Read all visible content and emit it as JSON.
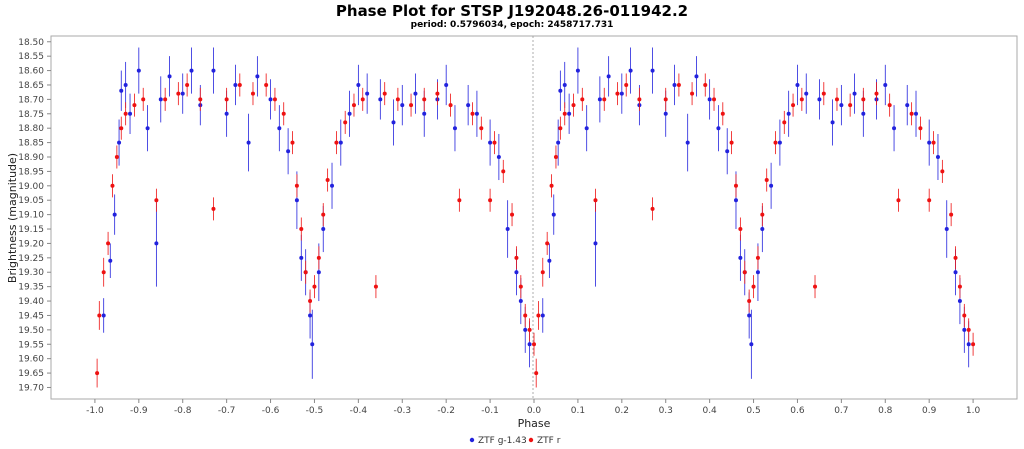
{
  "chart_data": {
    "type": "scatter",
    "title": "Phase Plot for STSP J192048.26-011942.2",
    "subtitle": "period: 0.5796034, epoch: 2458717.731",
    "xlabel": "Phase",
    "ylabel": "Brightness (magnitude)",
    "xlim": [
      -1.1,
      1.1
    ],
    "ylim": [
      18.48,
      19.74
    ],
    "y_inverted": true,
    "grid": false,
    "legend_placement": "bottom-center",
    "x_ticks": [
      "-1.0",
      "-0.9",
      "-0.8",
      "-0.7",
      "-0.6",
      "-0.5",
      "-0.4",
      "-0.3",
      "-0.2",
      "-0.1",
      "0.0",
      "0.1",
      "0.2",
      "0.3",
      "0.4",
      "0.5",
      "0.6",
      "0.7",
      "0.8",
      "0.9",
      "1.0"
    ],
    "y_ticks": [
      "18.50",
      "18.55",
      "18.60",
      "18.65",
      "18.70",
      "18.75",
      "18.80",
      "18.85",
      "18.90",
      "18.95",
      "19.00",
      "19.05",
      "19.10",
      "19.15",
      "19.20",
      "19.25",
      "19.30",
      "19.35",
      "19.40",
      "19.45",
      "19.50",
      "19.55",
      "19.60",
      "19.65",
      "19.70"
    ],
    "series": [
      {
        "name": "ZTF g-1.43",
        "color": "#2222dd",
        "points": [
          [
            -0.98,
            19.45,
            0.06
          ],
          [
            -0.965,
            19.26,
            0.06
          ],
          [
            -0.955,
            19.1,
            0.07
          ],
          [
            -0.945,
            18.85,
            0.08
          ],
          [
            -0.94,
            18.67,
            0.07
          ],
          [
            -0.93,
            18.65,
            0.08
          ],
          [
            -0.92,
            18.75,
            0.07
          ],
          [
            -0.9,
            18.6,
            0.08
          ],
          [
            -0.88,
            18.8,
            0.08
          ],
          [
            -0.86,
            19.2,
            0.15
          ],
          [
            -0.85,
            18.7,
            0.08
          ],
          [
            -0.83,
            18.62,
            0.07
          ],
          [
            -0.8,
            18.68,
            0.07
          ],
          [
            -0.78,
            18.6,
            0.08
          ],
          [
            -0.76,
            18.72,
            0.07
          ],
          [
            -0.73,
            18.6,
            0.08
          ],
          [
            -0.7,
            18.75,
            0.08
          ],
          [
            -0.68,
            18.65,
            0.07
          ],
          [
            -0.65,
            18.85,
            0.1
          ],
          [
            -0.63,
            18.62,
            0.07
          ],
          [
            -0.6,
            18.7,
            0.07
          ],
          [
            -0.58,
            18.8,
            0.08
          ],
          [
            -0.56,
            18.88,
            0.08
          ],
          [
            -0.54,
            19.05,
            0.1
          ],
          [
            -0.53,
            19.25,
            0.08
          ],
          [
            -0.52,
            19.3,
            0.08
          ],
          [
            -0.51,
            19.45,
            0.08
          ],
          [
            -0.505,
            19.55,
            0.12
          ],
          [
            -0.49,
            19.3,
            0.1
          ],
          [
            -0.48,
            19.15,
            0.08
          ],
          [
            -0.46,
            19.0,
            0.08
          ],
          [
            -0.44,
            18.85,
            0.08
          ],
          [
            -0.42,
            18.75,
            0.08
          ],
          [
            -0.4,
            18.65,
            0.07
          ],
          [
            -0.38,
            18.68,
            0.07
          ],
          [
            -0.35,
            18.7,
            0.07
          ],
          [
            -0.32,
            18.78,
            0.08
          ],
          [
            -0.3,
            18.72,
            0.07
          ],
          [
            -0.27,
            18.68,
            0.07
          ],
          [
            -0.25,
            18.75,
            0.08
          ],
          [
            -0.22,
            18.7,
            0.07
          ],
          [
            -0.2,
            18.65,
            0.07
          ],
          [
            -0.18,
            18.8,
            0.08
          ],
          [
            -0.15,
            18.72,
            0.07
          ],
          [
            -0.13,
            18.75,
            0.08
          ],
          [
            -0.1,
            18.85,
            0.08
          ],
          [
            -0.08,
            18.9,
            0.08
          ],
          [
            -0.06,
            19.15,
            0.1
          ],
          [
            -0.04,
            19.3,
            0.08
          ],
          [
            -0.03,
            19.4,
            0.08
          ],
          [
            -0.02,
            19.5,
            0.08
          ],
          [
            -0.01,
            19.55,
            0.08
          ],
          [
            0.02,
            19.45,
            0.06
          ],
          [
            0.035,
            19.26,
            0.06
          ],
          [
            0.045,
            19.1,
            0.07
          ],
          [
            0.055,
            18.85,
            0.08
          ],
          [
            0.06,
            18.67,
            0.07
          ],
          [
            0.07,
            18.65,
            0.08
          ],
          [
            0.08,
            18.75,
            0.07
          ],
          [
            0.1,
            18.6,
            0.08
          ],
          [
            0.12,
            18.8,
            0.08
          ],
          [
            0.14,
            19.2,
            0.15
          ],
          [
            0.15,
            18.7,
            0.08
          ],
          [
            0.17,
            18.62,
            0.07
          ],
          [
            0.2,
            18.68,
            0.07
          ],
          [
            0.22,
            18.6,
            0.08
          ],
          [
            0.24,
            18.72,
            0.07
          ],
          [
            0.27,
            18.6,
            0.08
          ],
          [
            0.3,
            18.75,
            0.08
          ],
          [
            0.32,
            18.65,
            0.07
          ],
          [
            0.35,
            18.85,
            0.1
          ],
          [
            0.37,
            18.62,
            0.07
          ],
          [
            0.4,
            18.7,
            0.07
          ],
          [
            0.42,
            18.8,
            0.08
          ],
          [
            0.44,
            18.88,
            0.08
          ],
          [
            0.46,
            19.05,
            0.1
          ],
          [
            0.47,
            19.25,
            0.08
          ],
          [
            0.48,
            19.3,
            0.08
          ],
          [
            0.49,
            19.45,
            0.08
          ],
          [
            0.495,
            19.55,
            0.12
          ],
          [
            0.51,
            19.3,
            0.1
          ],
          [
            0.52,
            19.15,
            0.08
          ],
          [
            0.54,
            19.0,
            0.08
          ],
          [
            0.56,
            18.85,
            0.08
          ],
          [
            0.58,
            18.75,
            0.08
          ],
          [
            0.6,
            18.65,
            0.07
          ],
          [
            0.62,
            18.68,
            0.07
          ],
          [
            0.65,
            18.7,
            0.07
          ],
          [
            0.68,
            18.78,
            0.08
          ],
          [
            0.7,
            18.72,
            0.07
          ],
          [
            0.73,
            18.68,
            0.07
          ],
          [
            0.75,
            18.75,
            0.08
          ],
          [
            0.78,
            18.7,
            0.07
          ],
          [
            0.8,
            18.65,
            0.07
          ],
          [
            0.82,
            18.8,
            0.08
          ],
          [
            0.85,
            18.72,
            0.07
          ],
          [
            0.87,
            18.75,
            0.08
          ],
          [
            0.9,
            18.85,
            0.08
          ],
          [
            0.92,
            18.9,
            0.08
          ],
          [
            0.94,
            19.15,
            0.1
          ],
          [
            0.96,
            19.3,
            0.08
          ],
          [
            0.97,
            19.4,
            0.08
          ],
          [
            0.98,
            19.5,
            0.08
          ],
          [
            0.99,
            19.55,
            0.08
          ]
        ]
      },
      {
        "name": "ZTF r",
        "color": "#ee1111",
        "points": [
          [
            -0.995,
            19.65,
            0.05
          ],
          [
            -0.99,
            19.45,
            0.05
          ],
          [
            -0.98,
            19.3,
            0.05
          ],
          [
            -0.97,
            19.2,
            0.04
          ],
          [
            -0.96,
            19.0,
            0.04
          ],
          [
            -0.95,
            18.9,
            0.04
          ],
          [
            -0.94,
            18.8,
            0.04
          ],
          [
            -0.93,
            18.75,
            0.04
          ],
          [
            -0.91,
            18.72,
            0.04
          ],
          [
            -0.89,
            18.7,
            0.04
          ],
          [
            -0.86,
            19.05,
            0.04
          ],
          [
            -0.84,
            18.7,
            0.04
          ],
          [
            -0.81,
            18.68,
            0.04
          ],
          [
            -0.79,
            18.65,
            0.04
          ],
          [
            -0.76,
            18.7,
            0.04
          ],
          [
            -0.73,
            19.08,
            0.04
          ],
          [
            -0.7,
            18.7,
            0.04
          ],
          [
            -0.67,
            18.65,
            0.04
          ],
          [
            -0.64,
            18.68,
            0.04
          ],
          [
            -0.61,
            18.65,
            0.04
          ],
          [
            -0.59,
            18.7,
            0.04
          ],
          [
            -0.57,
            18.75,
            0.04
          ],
          [
            -0.55,
            18.85,
            0.04
          ],
          [
            -0.54,
            19.0,
            0.04
          ],
          [
            -0.53,
            19.15,
            0.04
          ],
          [
            -0.52,
            19.3,
            0.04
          ],
          [
            -0.51,
            19.4,
            0.04
          ],
          [
            -0.5,
            19.35,
            0.04
          ],
          [
            -0.49,
            19.25,
            0.04
          ],
          [
            -0.48,
            19.1,
            0.04
          ],
          [
            -0.47,
            18.98,
            0.04
          ],
          [
            -0.45,
            18.85,
            0.04
          ],
          [
            -0.43,
            18.78,
            0.04
          ],
          [
            -0.41,
            18.72,
            0.04
          ],
          [
            -0.39,
            18.7,
            0.04
          ],
          [
            -0.36,
            19.35,
            0.04
          ],
          [
            -0.34,
            18.68,
            0.04
          ],
          [
            -0.31,
            18.7,
            0.04
          ],
          [
            -0.28,
            18.72,
            0.04
          ],
          [
            -0.25,
            18.7,
            0.04
          ],
          [
            -0.22,
            18.68,
            0.04
          ],
          [
            -0.19,
            18.72,
            0.04
          ],
          [
            -0.17,
            19.05,
            0.04
          ],
          [
            -0.14,
            18.75,
            0.04
          ],
          [
            -0.12,
            18.8,
            0.04
          ],
          [
            -0.1,
            19.05,
            0.04
          ],
          [
            -0.09,
            18.85,
            0.04
          ],
          [
            -0.07,
            18.95,
            0.04
          ],
          [
            -0.05,
            19.1,
            0.04
          ],
          [
            -0.04,
            19.25,
            0.04
          ],
          [
            -0.03,
            19.35,
            0.04
          ],
          [
            -0.02,
            19.45,
            0.04
          ],
          [
            -0.01,
            19.5,
            0.04
          ],
          [
            0.0,
            19.55,
            0.04
          ],
          [
            0.005,
            19.65,
            0.05
          ],
          [
            0.01,
            19.45,
            0.05
          ],
          [
            0.02,
            19.3,
            0.05
          ],
          [
            0.03,
            19.2,
            0.04
          ],
          [
            0.04,
            19.0,
            0.04
          ],
          [
            0.05,
            18.9,
            0.04
          ],
          [
            0.06,
            18.8,
            0.04
          ],
          [
            0.07,
            18.75,
            0.04
          ],
          [
            0.09,
            18.72,
            0.04
          ],
          [
            0.11,
            18.7,
            0.04
          ],
          [
            0.14,
            19.05,
            0.04
          ],
          [
            0.16,
            18.7,
            0.04
          ],
          [
            0.19,
            18.68,
            0.04
          ],
          [
            0.21,
            18.65,
            0.04
          ],
          [
            0.24,
            18.7,
            0.04
          ],
          [
            0.27,
            19.08,
            0.04
          ],
          [
            0.3,
            18.7,
            0.04
          ],
          [
            0.33,
            18.65,
            0.04
          ],
          [
            0.36,
            18.68,
            0.04
          ],
          [
            0.39,
            18.65,
            0.04
          ],
          [
            0.41,
            18.7,
            0.04
          ],
          [
            0.43,
            18.75,
            0.04
          ],
          [
            0.45,
            18.85,
            0.04
          ],
          [
            0.46,
            19.0,
            0.04
          ],
          [
            0.47,
            19.15,
            0.04
          ],
          [
            0.48,
            19.3,
            0.04
          ],
          [
            0.49,
            19.4,
            0.04
          ],
          [
            0.5,
            19.35,
            0.04
          ],
          [
            0.51,
            19.25,
            0.04
          ],
          [
            0.52,
            19.1,
            0.04
          ],
          [
            0.53,
            18.98,
            0.04
          ],
          [
            0.55,
            18.85,
            0.04
          ],
          [
            0.57,
            18.78,
            0.04
          ],
          [
            0.59,
            18.72,
            0.04
          ],
          [
            0.61,
            18.7,
            0.04
          ],
          [
            0.64,
            19.35,
            0.04
          ],
          [
            0.66,
            18.68,
            0.04
          ],
          [
            0.69,
            18.7,
            0.04
          ],
          [
            0.72,
            18.72,
            0.04
          ],
          [
            0.75,
            18.7,
            0.04
          ],
          [
            0.78,
            18.68,
            0.04
          ],
          [
            0.81,
            18.72,
            0.04
          ],
          [
            0.83,
            19.05,
            0.04
          ],
          [
            0.86,
            18.75,
            0.04
          ],
          [
            0.88,
            18.8,
            0.04
          ],
          [
            0.9,
            19.05,
            0.04
          ],
          [
            0.91,
            18.85,
            0.04
          ],
          [
            0.93,
            18.95,
            0.04
          ],
          [
            0.95,
            19.1,
            0.04
          ],
          [
            0.96,
            19.25,
            0.04
          ],
          [
            0.97,
            19.35,
            0.04
          ],
          [
            0.98,
            19.45,
            0.04
          ],
          [
            0.99,
            19.5,
            0.04
          ],
          [
            1.0,
            19.55,
            0.04
          ]
        ]
      }
    ]
  }
}
